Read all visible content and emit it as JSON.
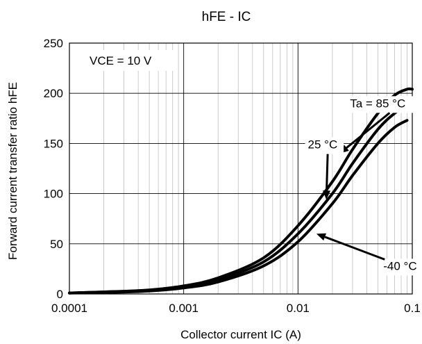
{
  "chart_data": {
    "type": "line",
    "title": "hFE - IC",
    "xlabel": "Collector current IC (A)",
    "ylabel": "Forward current transfer ratio hFE",
    "x_scale": "log",
    "xlim": [
      0.0001,
      0.1
    ],
    "ylim": [
      0,
      250
    ],
    "x_ticks": [
      "0.0001",
      "0.001",
      "0.01",
      "0.1"
    ],
    "y_ticks": [
      "0",
      "50",
      "100",
      "150",
      "200",
      "250"
    ],
    "grid": true,
    "condition_label": "VCE = 10 V",
    "series": [
      {
        "name": "Ta = 85 °C",
        "x": [
          0.0001,
          0.0002,
          0.0005,
          0.001,
          0.002,
          0.005,
          0.01,
          0.02,
          0.03,
          0.05,
          0.07,
          0.09,
          0.1
        ],
        "y": [
          1,
          2,
          4,
          8,
          16,
          36,
          68,
          112,
          144,
          180,
          198,
          204,
          204
        ]
      },
      {
        "name": "25 °C",
        "x": [
          0.0001,
          0.0002,
          0.0005,
          0.001,
          0.002,
          0.005,
          0.01,
          0.02,
          0.03,
          0.05,
          0.07,
          0.09,
          0.1
        ],
        "y": [
          1,
          2,
          3.5,
          7,
          14,
          32,
          60,
          100,
          130,
          164,
          180,
          188,
          188
        ]
      },
      {
        "name": "-40 °C",
        "x": [
          0.0001,
          0.0002,
          0.0005,
          0.001,
          0.002,
          0.005,
          0.01,
          0.02,
          0.03,
          0.05,
          0.07,
          0.09
        ],
        "y": [
          1,
          1.5,
          3,
          6,
          12,
          28,
          52,
          90,
          118,
          150,
          166,
          173
        ]
      }
    ],
    "annotations": [
      {
        "text": "Ta = 85 °C",
        "series": 0,
        "text_x": 0.0285,
        "text_y": 186,
        "arrow_to_x": 0.0231,
        "arrow_to_y": 140
      },
      {
        "text": "25 °C",
        "series": 1,
        "text_x": 0.0122,
        "text_y": 145,
        "arrow_to_x": 0.0177,
        "arrow_to_y": 94
      },
      {
        "text": "-40 °C",
        "series": 2,
        "text_x": 0.0558,
        "text_y": 24,
        "arrow_to_x": 0.0145,
        "arrow_to_y": 60
      }
    ]
  }
}
